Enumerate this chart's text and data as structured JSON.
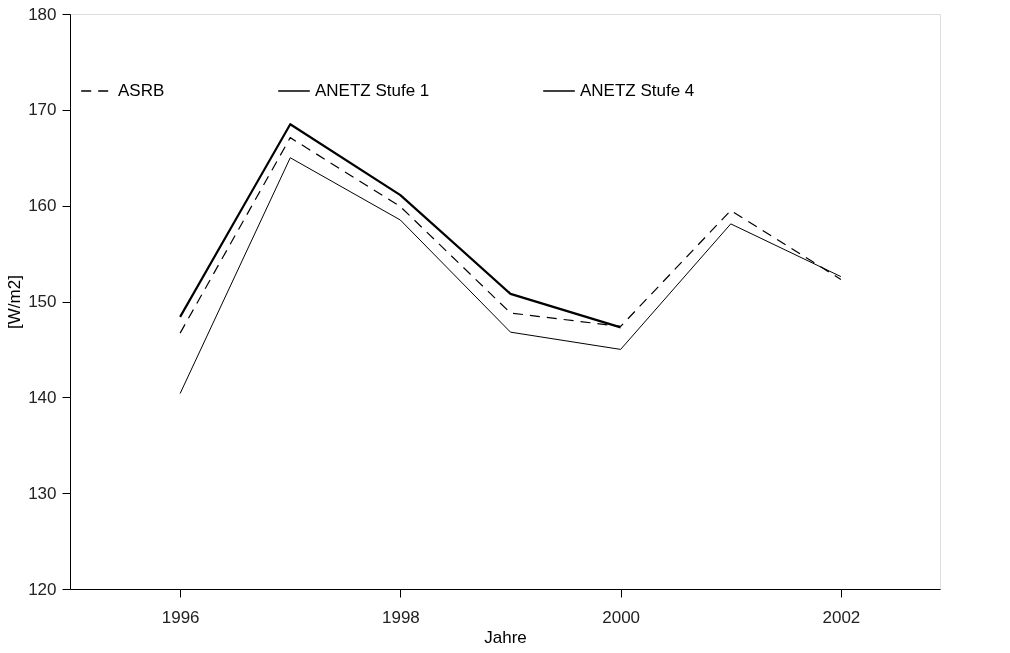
{
  "chart_data": {
    "type": "line",
    "xlabel": "Jahre",
    "ylabel": "[W/m2]",
    "x": [
      1996,
      1997,
      1998,
      1999,
      2000,
      2001,
      2002
    ],
    "xlim": [
      1995,
      2002.9
    ],
    "xticks": [
      1996,
      1998,
      2000,
      2002
    ],
    "ylim": [
      120,
      180
    ],
    "yticks": [
      120,
      130,
      140,
      150,
      160,
      170,
      180
    ],
    "grid": false,
    "legend": "top",
    "marker": "none",
    "series": [
      {
        "name": "ASRB",
        "color": "#000000",
        "line_style": "dashed",
        "values": [
          146.7,
          167.1,
          159.9,
          148.8,
          147.4,
          159.5,
          152.3
        ]
      },
      {
        "name": "ANETZ Stufe 1",
        "color": "#000000",
        "line_style": "solid",
        "values": [
          140.4,
          165.0,
          158.5,
          146.8,
          145.0,
          158.1,
          152.6
        ]
      },
      {
        "name": "ANETZ Stufe 4",
        "color": "#000000",
        "line_style": "solid",
        "values": [
          148.4,
          168.5,
          161.1,
          150.8,
          147.3,
          null,
          null
        ]
      }
    ]
  }
}
